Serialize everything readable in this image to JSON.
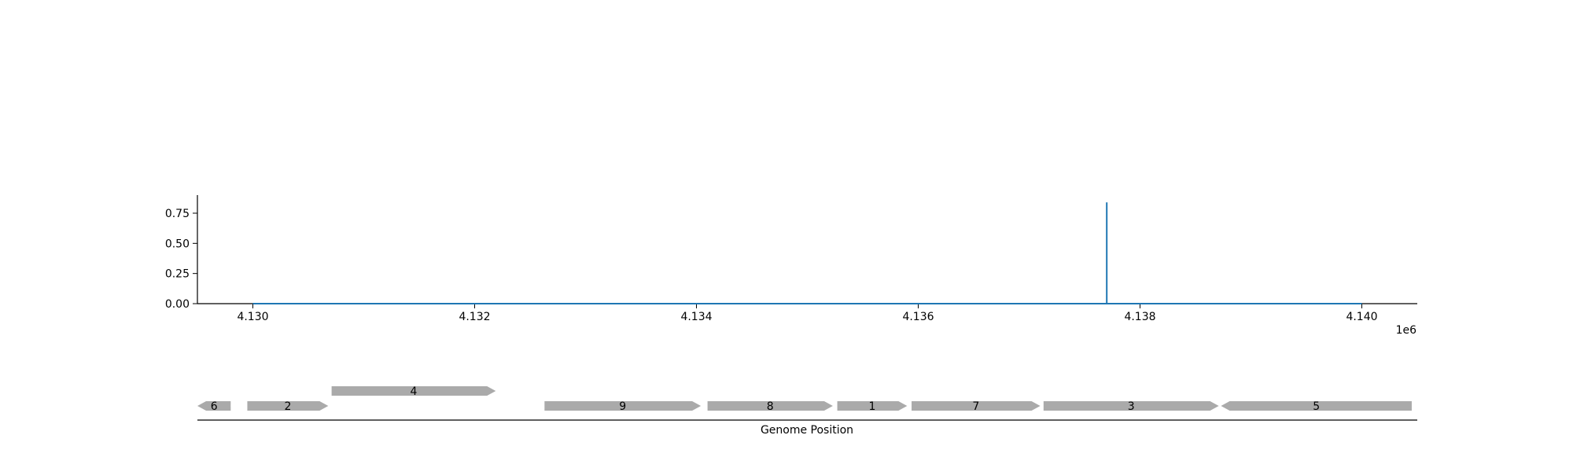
{
  "chart_data": [
    {
      "type": "line",
      "title": "",
      "xlabel": "",
      "ylabel": "",
      "xlim": [
        4129500,
        4140500
      ],
      "ylim": [
        0,
        0.9
      ],
      "x_offset_label": "1e6",
      "xticks": [
        4130000,
        4132000,
        4134000,
        4136000,
        4138000,
        4140000
      ],
      "xtick_labels": [
        "4.130",
        "4.132",
        "4.134",
        "4.136",
        "4.138",
        "4.140"
      ],
      "yticks": [
        0,
        0.25,
        0.5,
        0.75
      ],
      "ytick_labels": [
        "0.00",
        "0.25",
        "0.50",
        "0.75"
      ],
      "series": [
        {
          "color": "#1f77b4",
          "x": [
            4130000,
            4137700,
            4137700,
            4137700,
            4140000
          ],
          "y": [
            0,
            0,
            0.84,
            0,
            0
          ]
        }
      ],
      "grid": false
    },
    {
      "type": "gene-track",
      "xlabel": "Genome Position",
      "xlim": [
        4129500,
        4140500
      ],
      "color": "#aaaaaa",
      "genes": [
        {
          "label": "6",
          "start": 4129500,
          "end": 4129800,
          "strand": "-",
          "row": 0
        },
        {
          "label": "2",
          "start": 4129950,
          "end": 4130680,
          "strand": "+",
          "row": 0
        },
        {
          "label": "4",
          "start": 4130710,
          "end": 4132190,
          "strand": "+",
          "row": 1
        },
        {
          "label": "9",
          "start": 4132630,
          "end": 4134040,
          "strand": "+",
          "row": 0
        },
        {
          "label": "8",
          "start": 4134100,
          "end": 4135230,
          "strand": "+",
          "row": 0
        },
        {
          "label": "1",
          "start": 4135270,
          "end": 4135900,
          "strand": "+",
          "row": 0
        },
        {
          "label": "7",
          "start": 4135940,
          "end": 4137100,
          "strand": "+",
          "row": 0
        },
        {
          "label": "3",
          "start": 4137130,
          "end": 4138710,
          "strand": "+",
          "row": 0
        },
        {
          "label": "5",
          "start": 4138730,
          "end": 4140450,
          "strand": "-",
          "row": 0
        }
      ]
    }
  ]
}
